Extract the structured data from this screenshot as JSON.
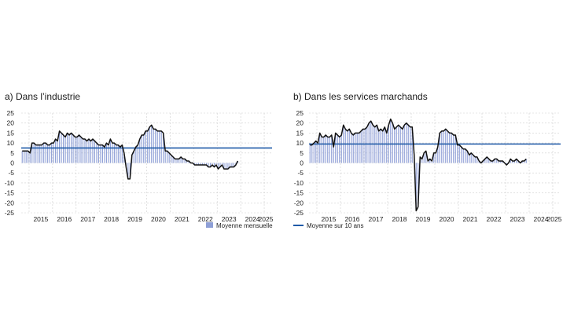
{
  "colors": {
    "bar": "#8e9fd6",
    "line": "#111111",
    "mean": "#1f5aa8",
    "grid": "#cfcfcf"
  },
  "legend": {
    "bars": "Moyenne mensuelle",
    "mean": "Moyenne sur 10 ans"
  },
  "chart_data": [
    {
      "id": "a",
      "type": "bar",
      "title": "a)  Dans l’industrie",
      "ylim": [
        -25,
        25
      ],
      "yticks": [
        25,
        20,
        15,
        10,
        5,
        0,
        -5,
        -10,
        -15,
        -20,
        -25
      ],
      "xticks": [
        "2015",
        "2016",
        "2017",
        "2018",
        "2019",
        "2020",
        "2021",
        "2022",
        "2023",
        "2024",
        "2025"
      ],
      "x_start": "2014-09",
      "x_end": "2025-04",
      "mean_10y": 7.5,
      "grid": true,
      "series": [
        {
          "values": [
            6,
            6,
            6,
            6,
            5,
            10,
            10,
            9,
            9,
            9,
            9,
            10,
            10,
            9,
            9,
            10,
            10,
            12,
            11,
            16,
            15,
            14,
            13,
            15,
            14,
            15,
            14,
            13,
            13,
            14,
            13,
            12,
            12,
            11,
            12,
            11,
            12,
            11,
            10,
            9,
            9,
            9,
            8,
            10,
            9,
            12,
            10,
            10,
            9,
            9,
            8,
            9,
            5,
            -2,
            -8,
            -8,
            4,
            6,
            8,
            9,
            12,
            14,
            14,
            16,
            16,
            18,
            19,
            17,
            17,
            16,
            16,
            16,
            15,
            6,
            6,
            5,
            4,
            3,
            2,
            2,
            2,
            3,
            2,
            2,
            1,
            1,
            0,
            0,
            -1,
            -1,
            -1,
            -1,
            -1,
            -1,
            -1,
            -2,
            -2,
            -1,
            -2,
            -1,
            -3,
            -2,
            -1,
            -3,
            -3,
            -3,
            -2,
            -2,
            -2,
            -1,
            1
          ]
        }
      ]
    },
    {
      "id": "b",
      "type": "bar",
      "title": "b)  Dans les services marchands",
      "ylim": [
        -25,
        25
      ],
      "yticks": [
        25,
        20,
        15,
        10,
        5,
        0,
        -5,
        -10,
        -15,
        -20,
        -25
      ],
      "xticks": [
        "2015",
        "2016",
        "2017",
        "2018",
        "2019",
        "2020",
        "2021",
        "2022",
        "2023",
        "2024",
        "2025"
      ],
      "x_start": "2014-09",
      "x_end": "2025-04",
      "mean_10y": 9.5,
      "grid": true,
      "series": [
        {
          "values": [
            9,
            9,
            10,
            11,
            10,
            15,
            13,
            13,
            14,
            13,
            13,
            14,
            8,
            15,
            14,
            13,
            14,
            19,
            17,
            16,
            17,
            15,
            14,
            15,
            15,
            15,
            16,
            17,
            17,
            18,
            20,
            21,
            19,
            18,
            19,
            16,
            17,
            16,
            18,
            15,
            19,
            22,
            20,
            17,
            18,
            19,
            18,
            17,
            19,
            20,
            19,
            18,
            18,
            4,
            -24,
            -22,
            3,
            2,
            5,
            6,
            1,
            2,
            1,
            5,
            5,
            8,
            15,
            16,
            16,
            17,
            16,
            15,
            15,
            14,
            14,
            9,
            9,
            8,
            7,
            7,
            6,
            4,
            5,
            4,
            3,
            3,
            1,
            0,
            1,
            2,
            3,
            2,
            1,
            1,
            2,
            2,
            1,
            1,
            1,
            0,
            -1,
            0,
            2,
            1,
            1,
            2,
            1,
            0,
            1,
            1,
            2
          ]
        }
      ]
    }
  ]
}
